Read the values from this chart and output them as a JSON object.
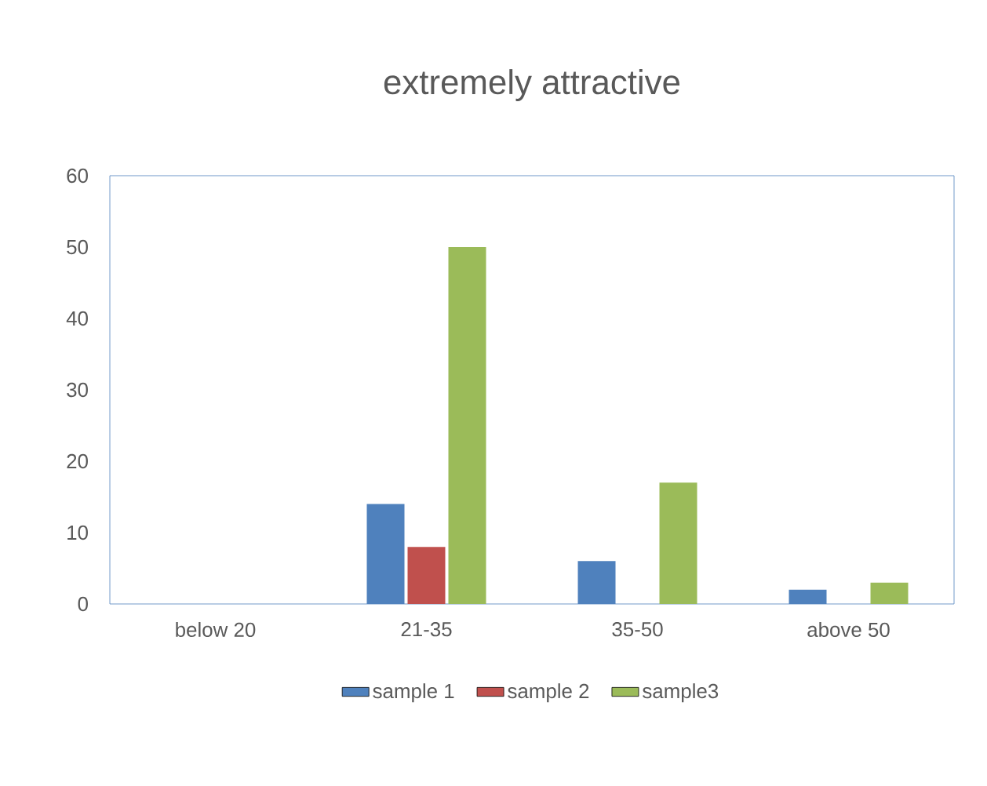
{
  "chart_data": {
    "type": "bar",
    "title": "extremely attractive",
    "categories": [
      "below 20",
      "21-35",
      "35-50",
      "above 50"
    ],
    "series": [
      {
        "name": "sample 1",
        "color": "#4f81bd",
        "values": [
          0,
          14,
          6,
          2
        ]
      },
      {
        "name": "sample 2",
        "color": "#c0504d",
        "values": [
          0,
          8,
          0,
          0
        ]
      },
      {
        "name": "sample3",
        "color": "#9bbb59",
        "values": [
          0,
          50,
          17,
          3
        ]
      }
    ],
    "ylim": [
      0,
      60
    ],
    "yticks": [
      0,
      10,
      20,
      30,
      40,
      50,
      60
    ],
    "grid": false,
    "legend": "bottom"
  }
}
